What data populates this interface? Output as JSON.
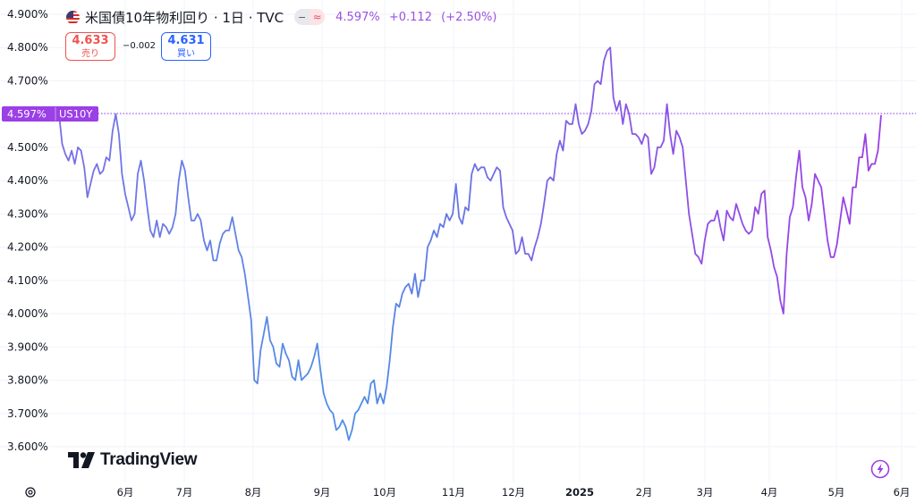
{
  "header": {
    "title": "米国債10年物利回り · 1日 · TVC",
    "pill_left": "−",
    "pill_right": "≈",
    "last_value": "4.597%",
    "change": "+0.112",
    "change_pct": "(+2.50%)"
  },
  "trade": {
    "sell_price": "4.633",
    "sell_label": "売り",
    "spread": "−0.002",
    "buy_price": "4.631",
    "buy_label": "買い"
  },
  "price_tag": {
    "value": "4.597%",
    "symbol": "US10Y"
  },
  "brand": "TradingView",
  "colors": {
    "line_start": "#4d8fe6",
    "line_end": "#9b3fe6",
    "tag": "#9b3fe6",
    "grid": "#f0f3fa"
  },
  "chart_data": {
    "type": "line",
    "title": "米国債10年物利回り · 1日 · TVC",
    "ylim": [
      3.58,
      4.93
    ],
    "y_ticks": [
      "3.600%",
      "3.700%",
      "3.800%",
      "3.900%",
      "4.000%",
      "4.100%",
      "4.200%",
      "4.300%",
      "4.400%",
      "4.500%",
      "4.600%",
      "4.700%",
      "4.800%",
      "4.900%"
    ],
    "x_ticks": [
      "6月",
      "7月",
      "8月",
      "9月",
      "10月",
      "11月",
      "12月",
      "2025",
      "2月",
      "3月",
      "4月",
      "5月",
      "6月"
    ],
    "gridlines": true,
    "last_value": 4.597,
    "values": [
      4.6,
      4.51,
      4.48,
      4.46,
      4.49,
      4.45,
      4.5,
      4.49,
      4.44,
      4.35,
      4.39,
      4.43,
      4.45,
      4.42,
      4.43,
      4.47,
      4.46,
      4.55,
      4.6,
      4.54,
      4.42,
      4.36,
      4.32,
      4.28,
      4.3,
      4.42,
      4.46,
      4.4,
      4.32,
      4.25,
      4.23,
      4.28,
      4.23,
      4.27,
      4.26,
      4.24,
      4.26,
      4.3,
      4.4,
      4.46,
      4.43,
      4.35,
      4.28,
      4.28,
      4.3,
      4.28,
      4.22,
      4.19,
      4.22,
      4.16,
      4.16,
      4.21,
      4.24,
      4.25,
      4.25,
      4.29,
      4.24,
      4.19,
      4.17,
      4.12,
      4.05,
      3.98,
      3.8,
      3.79,
      3.89,
      3.94,
      3.99,
      3.92,
      3.9,
      3.85,
      3.84,
      3.91,
      3.88,
      3.86,
      3.81,
      3.8,
      3.86,
      3.8,
      3.81,
      3.82,
      3.84,
      3.87,
      3.91,
      3.83,
      3.76,
      3.73,
      3.71,
      3.7,
      3.65,
      3.66,
      3.68,
      3.66,
      3.62,
      3.65,
      3.7,
      3.71,
      3.73,
      3.75,
      3.73,
      3.79,
      3.8,
      3.73,
      3.76,
      3.73,
      3.78,
      3.86,
      3.96,
      4.03,
      4.02,
      4.06,
      4.08,
      4.09,
      4.06,
      4.12,
      4.05,
      4.1,
      4.1,
      4.2,
      4.22,
      4.25,
      4.23,
      4.27,
      4.26,
      4.3,
      4.28,
      4.3,
      4.39,
      4.29,
      4.27,
      4.32,
      4.31,
      4.42,
      4.45,
      4.43,
      4.44,
      4.44,
      4.41,
      4.4,
      4.42,
      4.44,
      4.43,
      4.32,
      4.29,
      4.27,
      4.25,
      4.18,
      4.19,
      4.23,
      4.18,
      4.18,
      4.16,
      4.2,
      4.23,
      4.27,
      4.33,
      4.4,
      4.41,
      4.4,
      4.48,
      4.52,
      4.49,
      4.58,
      4.57,
      4.57,
      4.63,
      4.57,
      4.54,
      4.55,
      4.57,
      4.61,
      4.69,
      4.7,
      4.69,
      4.76,
      4.79,
      4.8,
      4.65,
      4.61,
      4.64,
      4.57,
      4.63,
      4.6,
      4.54,
      4.54,
      4.53,
      4.51,
      4.54,
      4.53,
      4.42,
      4.44,
      4.5,
      4.5,
      4.52,
      4.63,
      4.54,
      4.48,
      4.55,
      4.53,
      4.5,
      4.4,
      4.3,
      4.24,
      4.18,
      4.17,
      4.15,
      4.22,
      4.27,
      4.28,
      4.28,
      4.31,
      4.26,
      4.22,
      4.31,
      4.29,
      4.28,
      4.33,
      4.3,
      4.27,
      4.25,
      4.24,
      4.25,
      4.32,
      4.3,
      4.36,
      4.37,
      4.23,
      4.19,
      4.14,
      4.11,
      4.04,
      4.0,
      4.18,
      4.29,
      4.32,
      4.41,
      4.49,
      4.38,
      4.35,
      4.28,
      4.33,
      4.42,
      4.4,
      4.38,
      4.3,
      4.22,
      4.17,
      4.17,
      4.21,
      4.28,
      4.35,
      4.31,
      4.27,
      4.38,
      4.38,
      4.47,
      4.47,
      4.54,
      4.43,
      4.45,
      4.45,
      4.49,
      4.597
    ]
  }
}
